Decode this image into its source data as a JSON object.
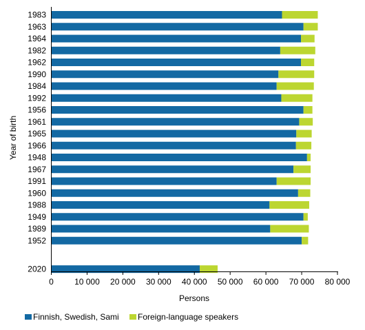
{
  "chart_data": {
    "type": "bar",
    "orientation": "horizontal",
    "stacked": true,
    "xlabel": "Persons",
    "ylabel": "Year of birth",
    "xlim": [
      0,
      80000
    ],
    "xticks": [
      0,
      10000,
      20000,
      30000,
      40000,
      50000,
      60000,
      70000,
      80000
    ],
    "xtick_labels": [
      "0",
      "10 000",
      "20 000",
      "30 000",
      "40 000",
      "50 000",
      "60 000",
      "70 000",
      "80 000"
    ],
    "grid": false,
    "legend_position": "bottom",
    "categories": [
      "1983",
      "1963",
      "1964",
      "1982",
      "1962",
      "1990",
      "1984",
      "1992",
      "1956",
      "1961",
      "1965",
      "1966",
      "1948",
      "1967",
      "1991",
      "1960",
      "1988",
      "1949",
      "1989",
      "1952",
      "2020"
    ],
    "series": [
      {
        "name": "Finnish, Swedish, Sami",
        "color": "#1369a3",
        "values": [
          64500,
          70500,
          69800,
          64000,
          69800,
          63500,
          63000,
          64300,
          70500,
          69300,
          68500,
          68400,
          71500,
          67700,
          63000,
          69000,
          61000,
          70500,
          61200,
          70000,
          41500
        ]
      },
      {
        "name": "Foreign-language speakers",
        "color": "#bcd631",
        "values": [
          10000,
          4000,
          3800,
          9800,
          3700,
          10000,
          10400,
          8700,
          2500,
          3800,
          4300,
          4300,
          1000,
          4800,
          9500,
          3400,
          11100,
          1200,
          10800,
          1800,
          5000
        ]
      }
    ]
  }
}
